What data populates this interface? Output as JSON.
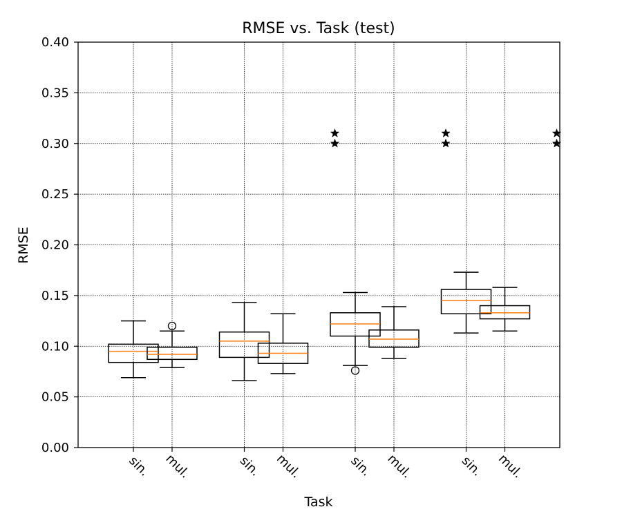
{
  "chart_data": {
    "type": "box",
    "title": "RMSE vs. Task (test)",
    "xlabel": "Task",
    "ylabel": "RMSE",
    "ylim": [
      0,
      0.4
    ],
    "yticks": [
      "0.00",
      "0.05",
      "0.10",
      "0.15",
      "0.20",
      "0.25",
      "0.30",
      "0.35",
      "0.40"
    ],
    "grid": true,
    "groups": [
      {
        "labels": [
          "sin.",
          "mul."
        ],
        "boxes": [
          {
            "label": "sin.",
            "whislo": 0.069,
            "q1": 0.084,
            "med": 0.095,
            "q3": 0.102,
            "whishi": 0.125,
            "fliers": []
          },
          {
            "label": "mul.",
            "whislo": 0.079,
            "q1": 0.087,
            "med": 0.092,
            "q3": 0.099,
            "whishi": 0.115,
            "fliers": [
              0.12
            ]
          }
        ],
        "stars": []
      },
      {
        "labels": [
          "sin.",
          "mul."
        ],
        "boxes": [
          {
            "label": "sin.",
            "whislo": 0.066,
            "q1": 0.089,
            "med": 0.105,
            "q3": 0.114,
            "whishi": 0.143,
            "fliers": []
          },
          {
            "label": "mul.",
            "whislo": 0.073,
            "q1": 0.083,
            "med": 0.093,
            "q3": 0.103,
            "whishi": 0.132,
            "fliers": []
          }
        ],
        "stars": [
          0.31,
          0.3
        ]
      },
      {
        "labels": [
          "sin.",
          "mul."
        ],
        "boxes": [
          {
            "label": "sin.",
            "whislo": 0.081,
            "q1": 0.11,
            "med": 0.122,
            "q3": 0.133,
            "whishi": 0.153,
            "fliers": [
              0.076
            ]
          },
          {
            "label": "mul.",
            "whislo": 0.088,
            "q1": 0.099,
            "med": 0.107,
            "q3": 0.116,
            "whishi": 0.139,
            "fliers": []
          }
        ],
        "stars": [
          0.31,
          0.3
        ]
      },
      {
        "labels": [
          "sin.",
          "mul."
        ],
        "boxes": [
          {
            "label": "sin.",
            "whislo": 0.113,
            "q1": 0.132,
            "med": 0.145,
            "q3": 0.156,
            "whishi": 0.173,
            "fliers": []
          },
          {
            "label": "mul.",
            "whislo": 0.115,
            "q1": 0.127,
            "med": 0.133,
            "q3": 0.14,
            "whishi": 0.158,
            "fliers": []
          }
        ],
        "stars": [
          0.31,
          0.3
        ]
      }
    ],
    "colors": {
      "box": "#000000",
      "median": "#ff7f0e",
      "grid": "#000000"
    }
  }
}
